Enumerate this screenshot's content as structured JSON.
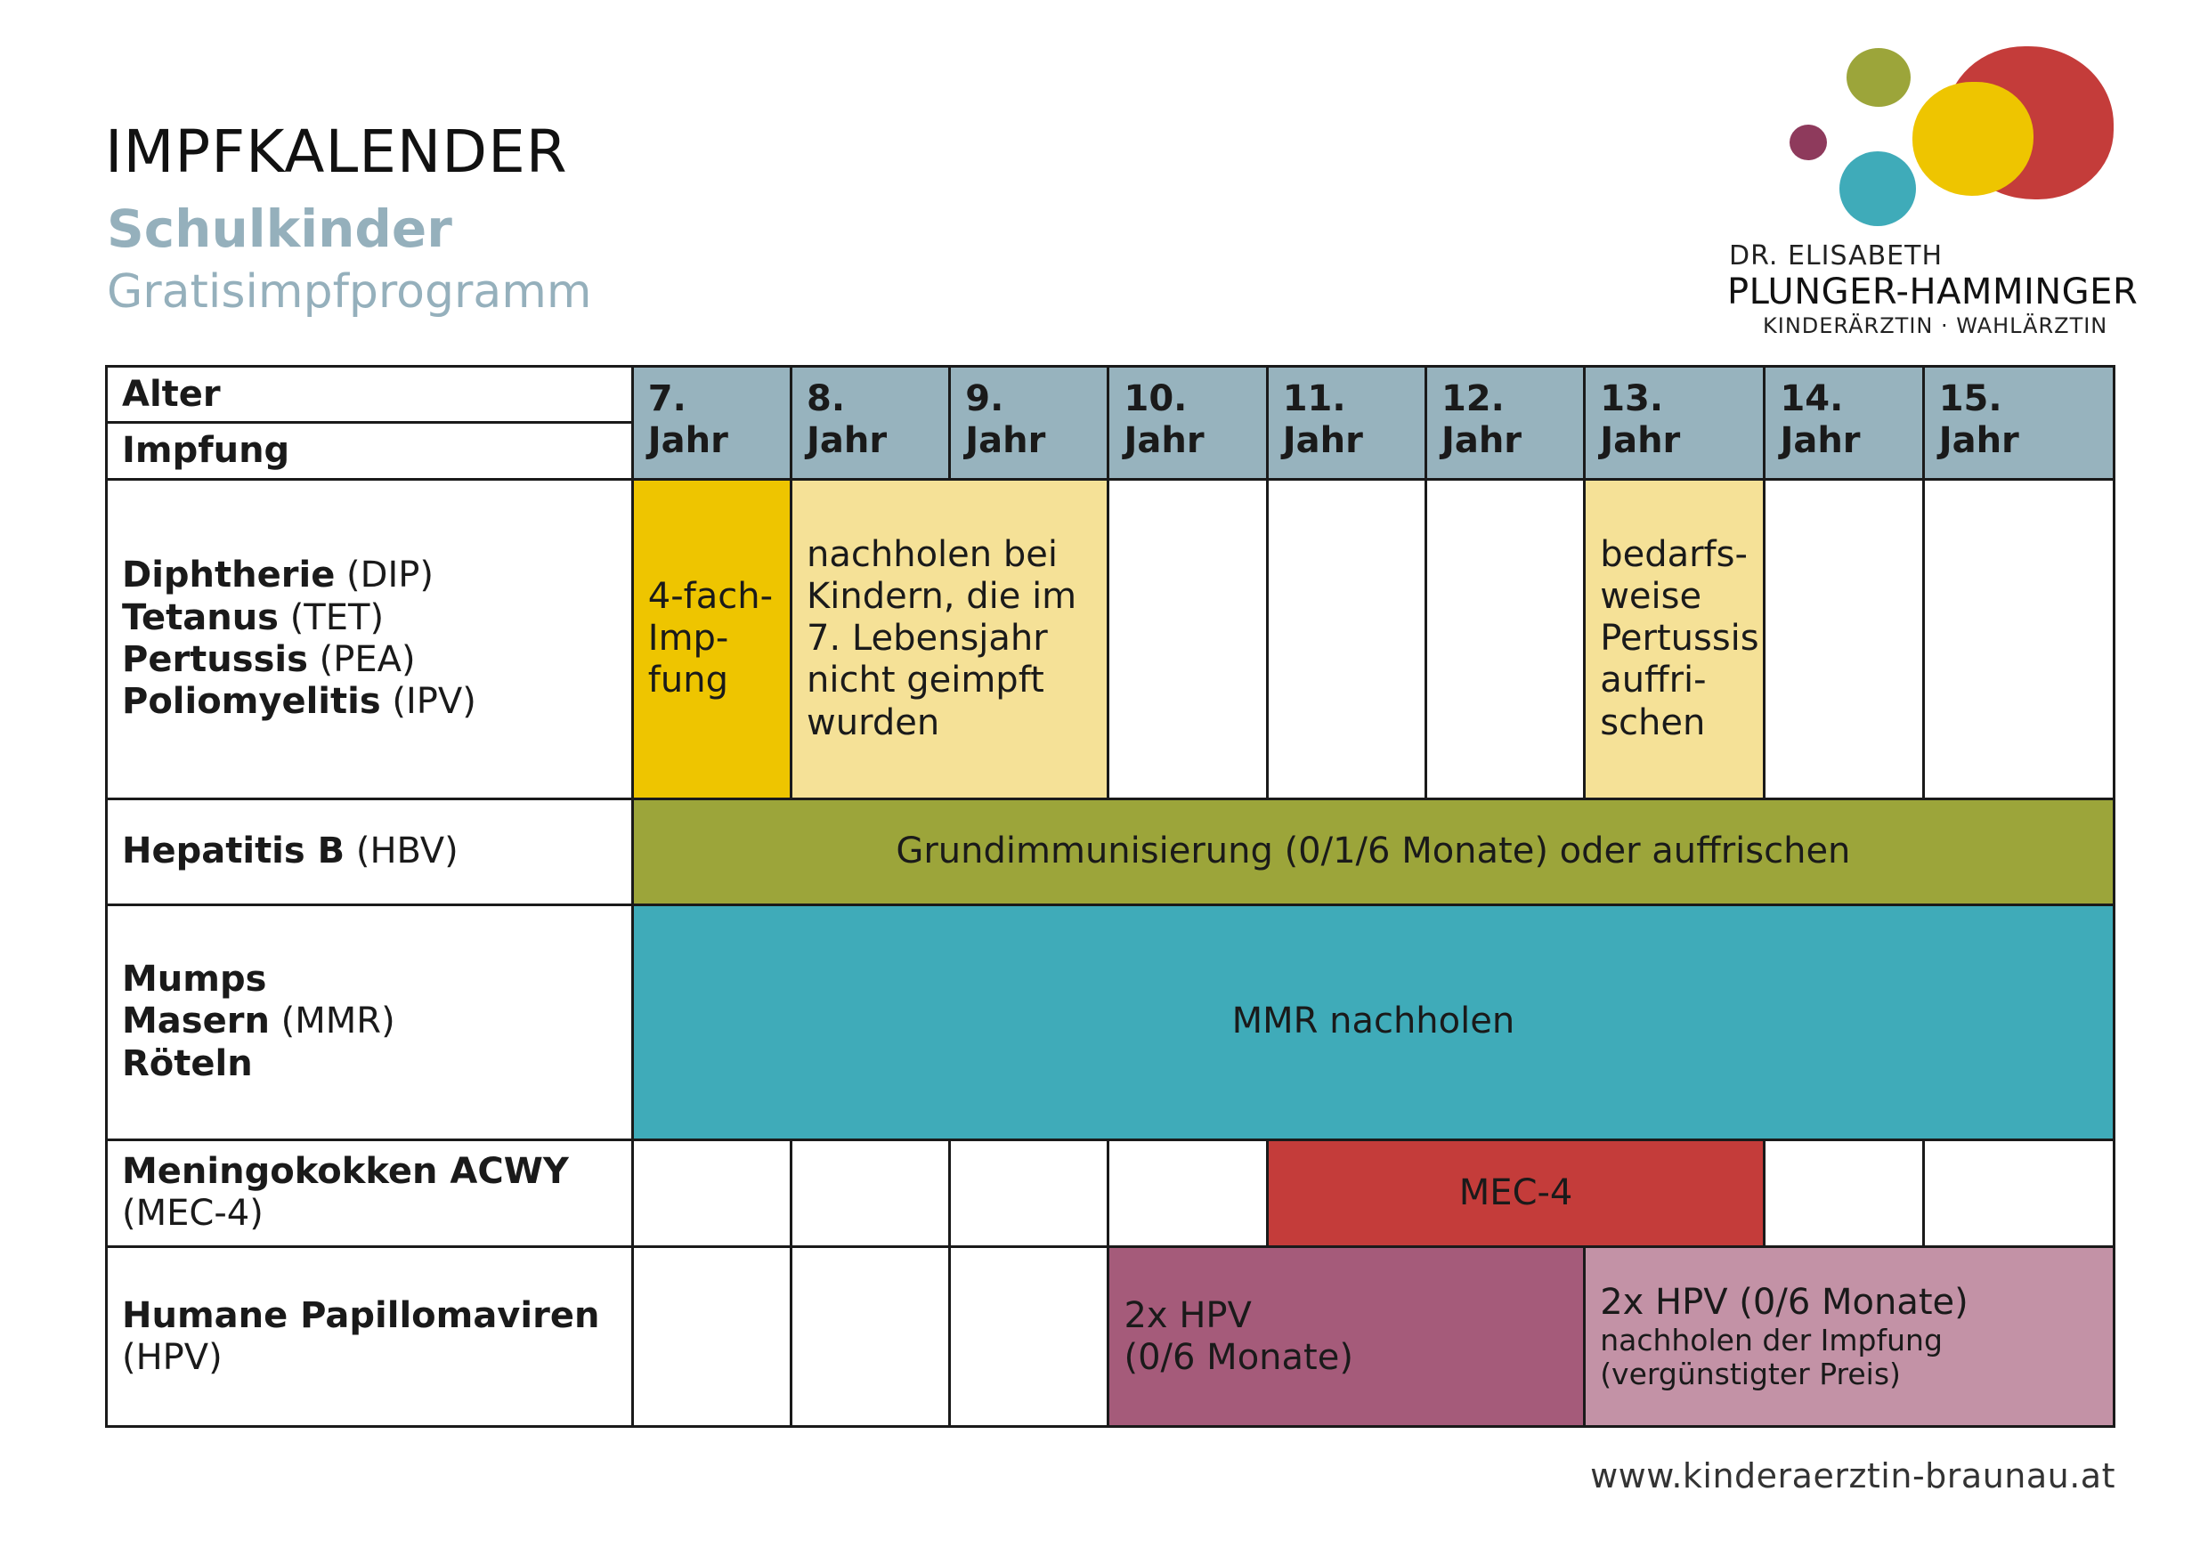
{
  "header": {
    "title": "IMPFKALENDER",
    "subtitle": "Schulkinder",
    "tagline": "Gratisimpfprogramm"
  },
  "logo": {
    "line1": "DR. ELISABETH",
    "line2": "PLUNGER-HAMMINGER",
    "line3": "KINDERÄRZTIN · WAHLÄRZTIN",
    "colors": [
      "#9ca53a",
      "#8e3a5c",
      "#3fabb9",
      "#eec500",
      "#c43c3a"
    ]
  },
  "table": {
    "age_label": "Alter",
    "vaccine_label": "Impfung",
    "years": [
      {
        "num": "7.",
        "word": "Jahr"
      },
      {
        "num": "8.",
        "word": "Jahr"
      },
      {
        "num": "9.",
        "word": "Jahr"
      },
      {
        "num": "10.",
        "word": "Jahr"
      },
      {
        "num": "11.",
        "word": "Jahr"
      },
      {
        "num": "12.",
        "word": "Jahr"
      },
      {
        "num": "13.",
        "word": "Jahr"
      },
      {
        "num": "14.",
        "word": "Jahr"
      },
      {
        "num": "15.",
        "word": "Jahr"
      }
    ],
    "rows": {
      "dip": {
        "lines": [
          {
            "name": "Diphtherie",
            "abbr": "(DIP)"
          },
          {
            "name": "Tetanus",
            "abbr": "(TET)"
          },
          {
            "name": "Pertussis",
            "abbr": "(PEA)"
          },
          {
            "name": "Poliomyelitis",
            "abbr": "(IPV)"
          }
        ],
        "cell_7": [
          "4-fach-",
          "Imp-",
          "fung"
        ],
        "cell_8_9": [
          "nachholen bei",
          "Kindern, die im",
          "7. Lebensjahr",
          "nicht geimpft",
          "wurden"
        ],
        "cell_13": [
          "bedarfs-",
          "weise",
          "Pertussis",
          "auffri-",
          "schen"
        ]
      },
      "hbv": {
        "name": "Hepatitis B",
        "abbr": "(HBV)",
        "span_text": "Grundimmunisierung (0/1/6 Monate) oder auffrischen"
      },
      "mmr": {
        "lines": [
          {
            "name": "Mumps",
            "abbr": ""
          },
          {
            "name": "Masern",
            "abbr": "(MMR)"
          },
          {
            "name": "Röteln",
            "abbr": ""
          }
        ],
        "span_text": "MMR nachholen"
      },
      "mec": {
        "name": "Meningokokken ACWY",
        "abbr": "(MEC-4)",
        "span_text": "MEC-4"
      },
      "hpv": {
        "name": "Humane Papillomaviren",
        "abbr": "(HPV)",
        "span1": [
          "2x HPV",
          "(0/6 Monate)"
        ],
        "span2_main": "2x HPV (0/6 Monate)",
        "span2_small": [
          "nachholen der Impfung",
          "(vergünstigter Preis)"
        ]
      }
    }
  },
  "footer": {
    "website": "www.kinderaerztin-braunau.at"
  }
}
